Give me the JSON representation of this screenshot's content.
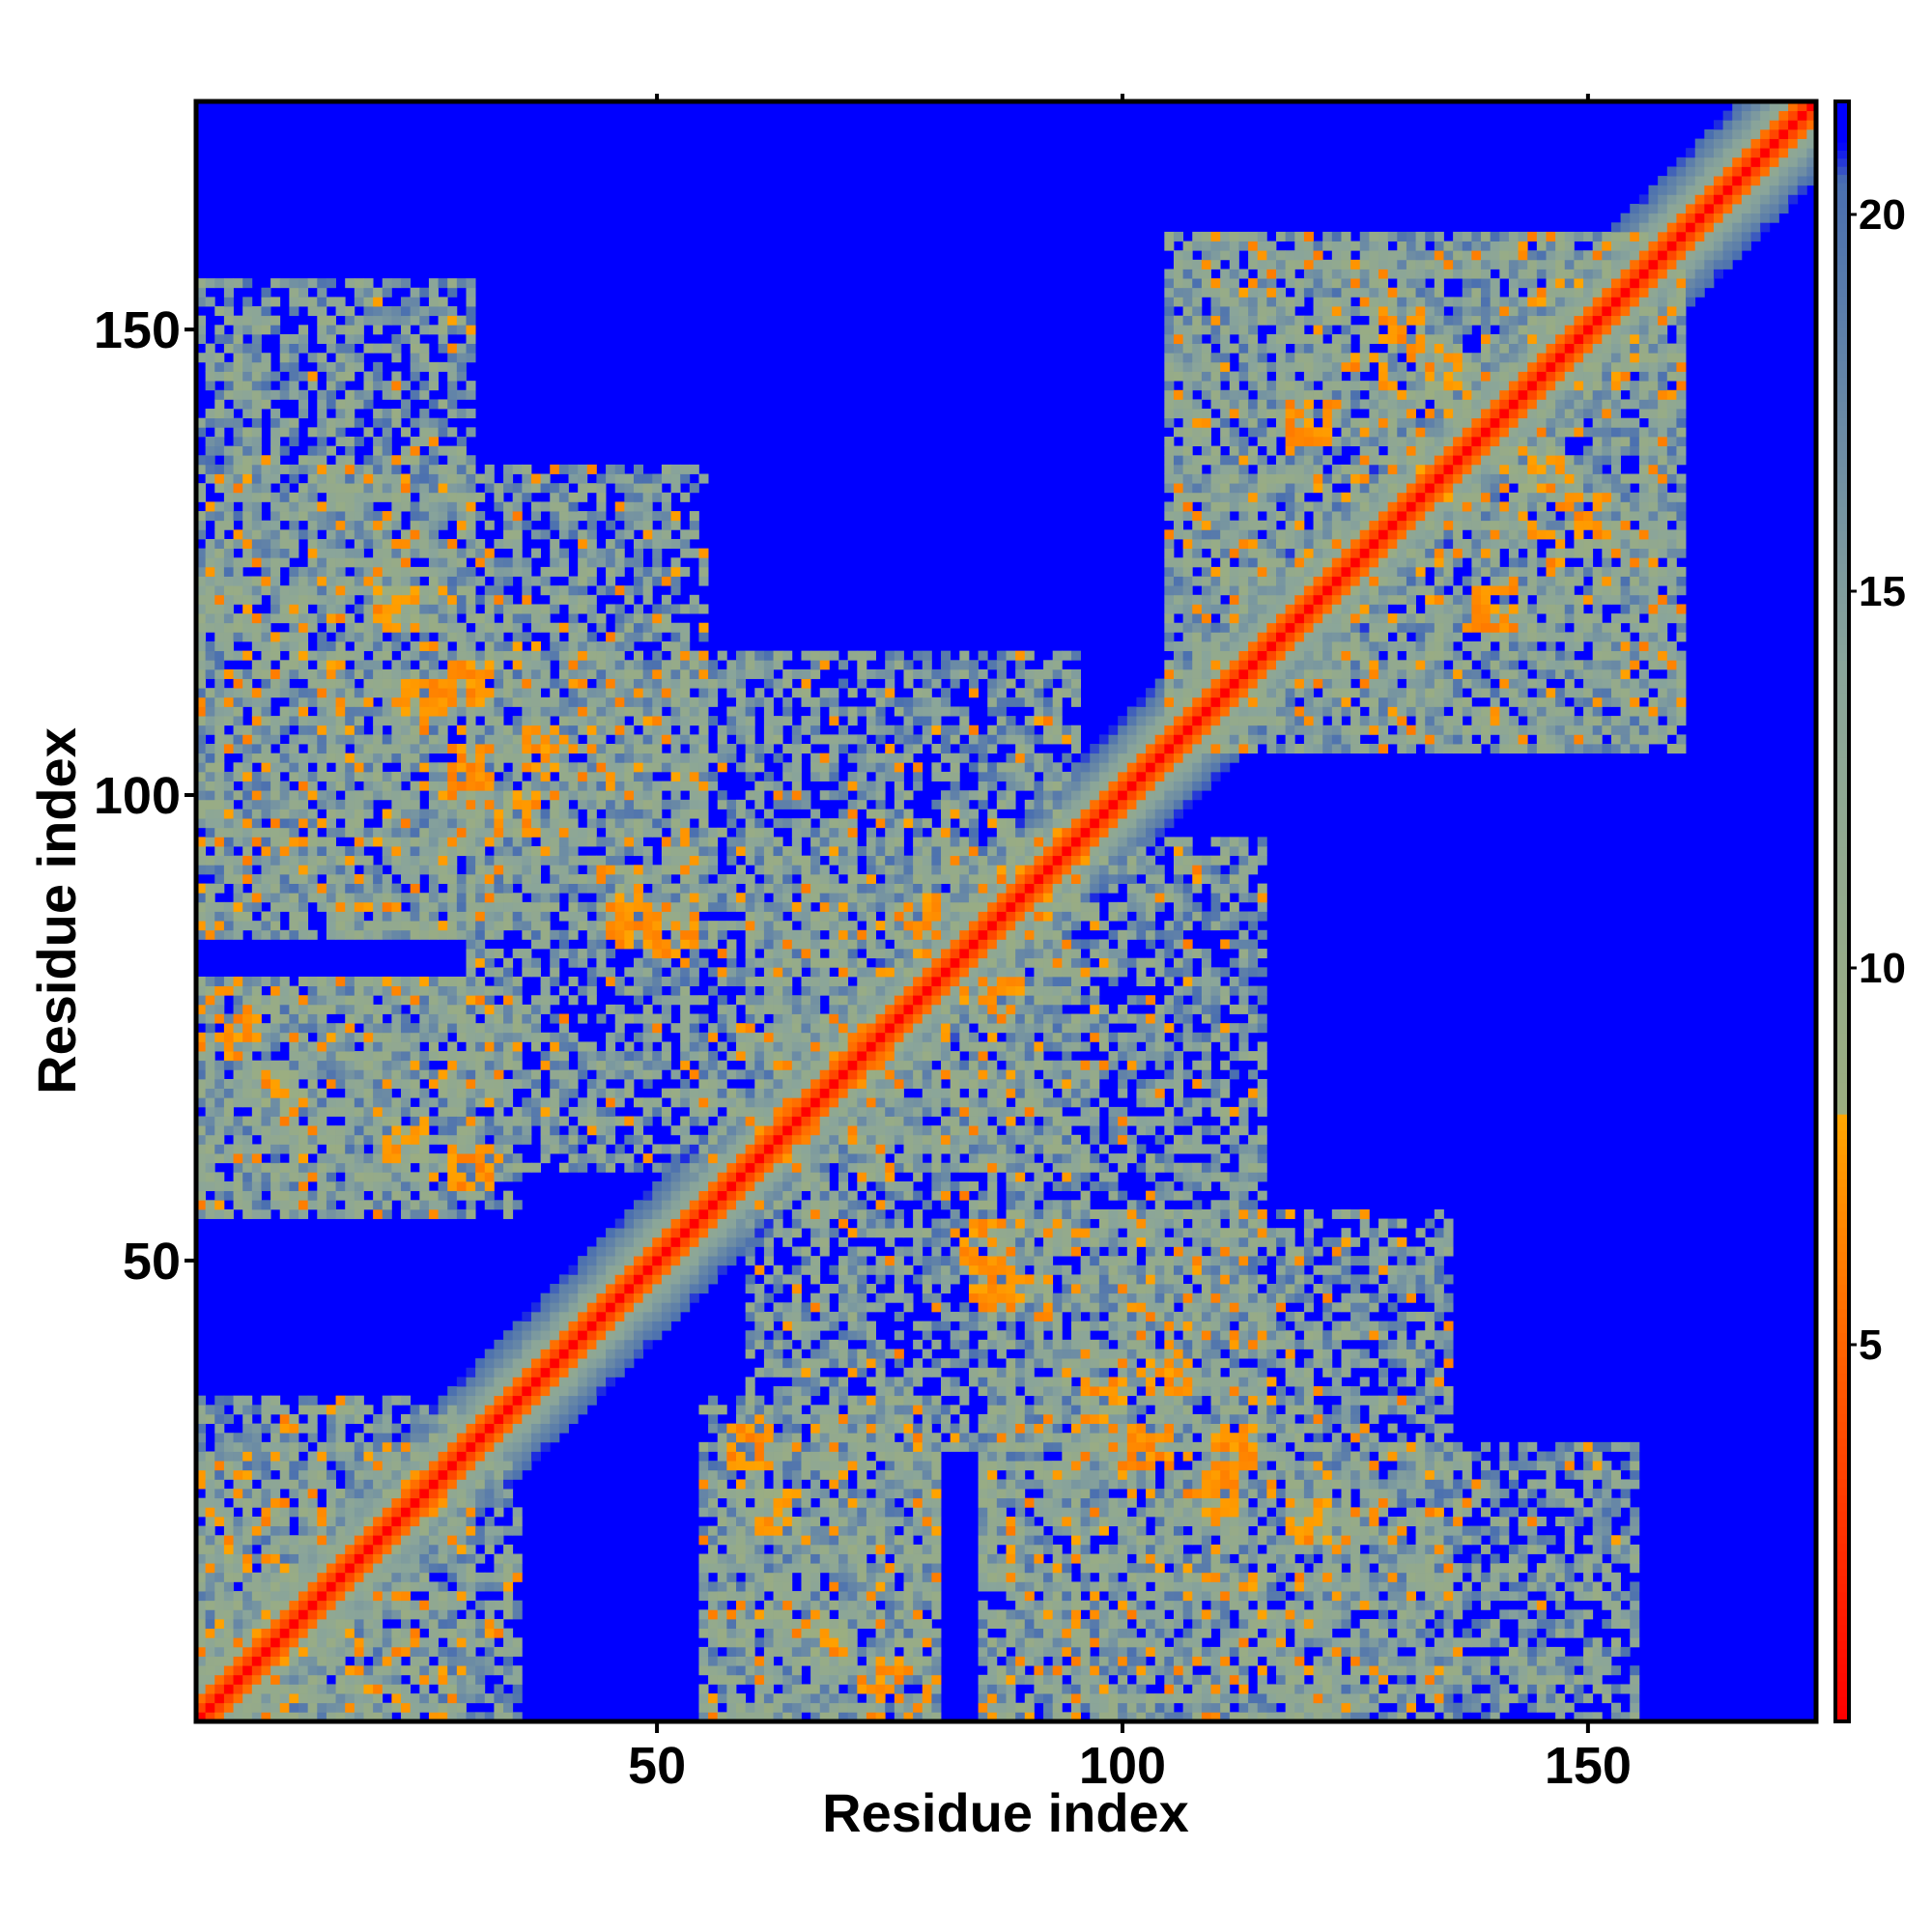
{
  "chart_data": {
    "type": "heatmap",
    "title": "",
    "xlabel": "Residue index",
    "ylabel": "Residue index",
    "n_residues": 174,
    "xlim": [
      1,
      174
    ],
    "ylim": [
      1,
      174
    ],
    "x_ticks": [
      50,
      100,
      150
    ],
    "y_ticks": [
      50,
      100,
      150
    ],
    "x_tick_labels": [
      "50",
      "100",
      "150"
    ],
    "y_tick_labels": [
      "50",
      "100",
      "150"
    ],
    "colorbar": {
      "range": [
        0,
        21.5
      ],
      "ticks": [
        5,
        10,
        15,
        20
      ],
      "tick_labels": [
        "5",
        "10",
        "15",
        "20"
      ],
      "position": "right",
      "stops": [
        {
          "value": 0,
          "color": "#ff0000"
        },
        {
          "value": 4.5,
          "color": "#ff5a00"
        },
        {
          "value": 8.0,
          "color": "#ffa500"
        },
        {
          "value": 8.01,
          "color": "#9cae80"
        },
        {
          "value": 14.0,
          "color": "#8aa59a"
        },
        {
          "value": 20.5,
          "color": "#4a6fb0"
        },
        {
          "value": 21.0,
          "color": "#0000ff"
        }
      ]
    },
    "background_value": 21.5,
    "background_color": "#0000ff",
    "diagonal": {
      "min_value": 0,
      "band_width_residues": 8
    },
    "contact_regions": [
      {
        "x": [
          1,
          10
        ],
        "y": [
          1,
          10
        ],
        "label": "diagonal-start"
      },
      {
        "x": [
          1,
          30
        ],
        "y": [
          85,
          155
        ],
        "label": "upper-left contacts"
      },
      {
        "x": [
          1,
          30
        ],
        "y": [
          55,
          80
        ],
        "label": "left contacts"
      },
      {
        "x": [
          1,
          30
        ],
        "y": [
          1,
          35
        ],
        "label": "lower-left contacts"
      },
      {
        "x": [
          30,
          95
        ],
        "y": [
          60,
          115
        ],
        "label": "central contacts"
      },
      {
        "x": [
          85,
          135
        ],
        "y": [
          1,
          55
        ],
        "label": "lower-right contacts"
      },
      {
        "x": [
          55,
          80
        ],
        "y": [
          1,
          35
        ],
        "label": "lower-middle contacts"
      },
      {
        "x": [
          105,
          160
        ],
        "y": [
          105,
          160
        ],
        "label": "upper-right domain"
      }
    ],
    "near_contacts": [
      {
        "x": 47,
        "y": 87,
        "value": 6
      },
      {
        "x": 52,
        "y": 85,
        "value": 6
      },
      {
        "x": 78,
        "y": 87,
        "value": 6
      },
      {
        "x": 86,
        "y": 48,
        "value": 6
      },
      {
        "x": 90,
        "y": 46,
        "value": 7
      },
      {
        "x": 25,
        "y": 110,
        "value": 6
      },
      {
        "x": 30,
        "y": 103,
        "value": 6
      },
      {
        "x": 35,
        "y": 98,
        "value": 7
      },
      {
        "x": 60,
        "y": 30,
        "value": 6
      },
      {
        "x": 63,
        "y": 23,
        "value": 7
      },
      {
        "x": 105,
        "y": 38,
        "value": 6
      },
      {
        "x": 112,
        "y": 30,
        "value": 6
      },
      {
        "x": 120,
        "y": 22,
        "value": 7
      },
      {
        "x": 5,
        "y": 74,
        "value": 6
      },
      {
        "x": 10,
        "y": 68,
        "value": 7
      },
      {
        "x": 130,
        "y": 150,
        "value": 6
      },
      {
        "x": 140,
        "y": 120,
        "value": 6
      },
      {
        "x": 145,
        "y": 135,
        "value": 7
      },
      {
        "x": 120,
        "y": 140,
        "value": 6
      }
    ]
  }
}
